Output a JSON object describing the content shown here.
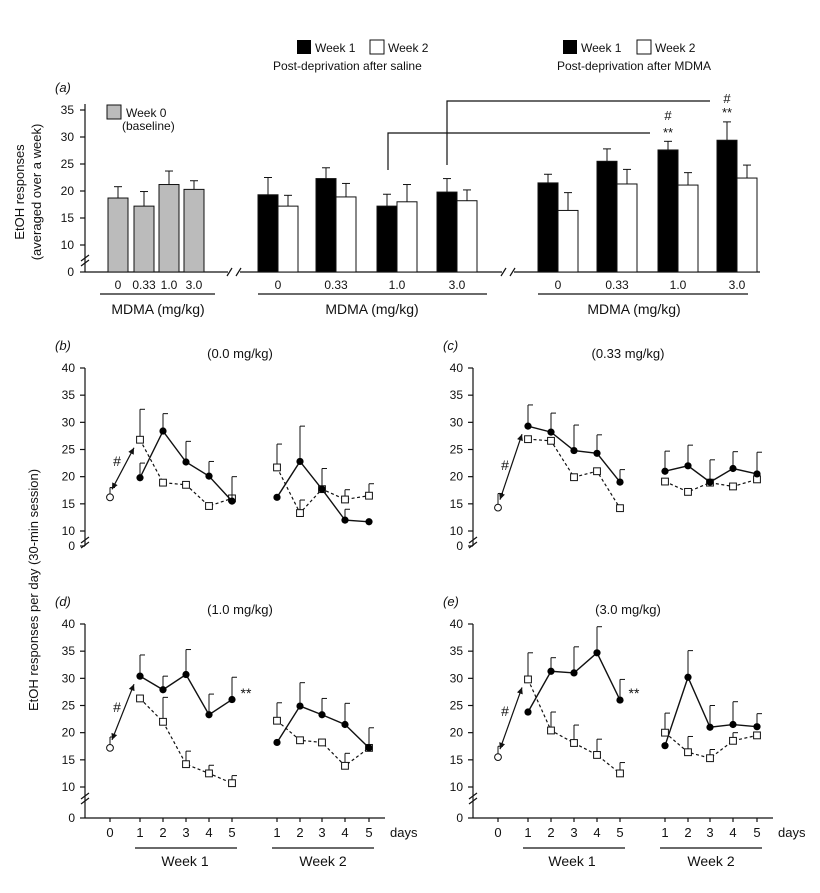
{
  "legend": {
    "w1": "Week 1",
    "w2": "Week 2",
    "w0": "Week 0",
    "w0b": "(baseline)",
    "saline": "Post-deprivation after saline",
    "mdma": "Post-deprivation after MDMA"
  },
  "labels": {
    "panel_a": "(a)",
    "panel_b": "(b)",
    "panel_c": "(c)",
    "panel_d": "(d)",
    "panel_e": "(e)",
    "ya1": "EtOH responses",
    "ya2": "(averaged over a week)",
    "ybe": "EtOH responses per day (30-min session)",
    "xlab": "MDMA (mg/kg)",
    "days": "days",
    "week1": "Week 1",
    "week2": "Week 2",
    "hash": "#",
    "stars": "**"
  },
  "chart_data": [
    {
      "type": "bar",
      "panel": "a",
      "ylim": [
        0,
        35
      ],
      "yticks": [
        0,
        10,
        15,
        20,
        25,
        30,
        35
      ],
      "groups": [
        {
          "name": "Week 0 (baseline)",
          "categories": [
            "0",
            "0.33",
            "1.0",
            "3.0"
          ],
          "series": [
            {
              "name": "Week 0",
              "values": [
                18.7,
                17.2,
                21.2,
                20.3
              ],
              "err": [
                2.1,
                2.7,
                2.5,
                1.6
              ]
            }
          ]
        },
        {
          "name": "Post-deprivation after saline",
          "categories": [
            "0",
            "0.33",
            "1.0",
            "3.0"
          ],
          "series": [
            {
              "name": "Week 1",
              "values": [
                19.3,
                22.3,
                17.2,
                19.8
              ],
              "err": [
                3.2,
                2.0,
                2.2,
                2.5
              ]
            },
            {
              "name": "Week 2",
              "values": [
                17.2,
                18.9,
                18.0,
                18.2
              ],
              "err": [
                2.0,
                2.5,
                3.2,
                2.0
              ]
            }
          ]
        },
        {
          "name": "Post-deprivation after MDMA",
          "categories": [
            "0",
            "0.33",
            "1.0",
            "3.0"
          ],
          "series": [
            {
              "name": "Week 1",
              "values": [
                21.5,
                25.5,
                27.6,
                29.4
              ],
              "err": [
                1.6,
                2.3,
                1.6,
                3.4
              ]
            },
            {
              "name": "Week 2",
              "values": [
                16.4,
                21.3,
                21.1,
                22.4
              ],
              "err": [
                3.3,
                2.7,
                2.3,
                2.4
              ]
            }
          ]
        }
      ],
      "annotations": [
        "#",
        "**"
      ]
    },
    {
      "type": "line",
      "panel": "b",
      "title": "(0.0 mg/kg)",
      "ylim": [
        0,
        40
      ],
      "baseline": {
        "day": 0,
        "value": 16.2,
        "err": 1.8
      },
      "week1": {
        "w1": [
          19.8,
          28.4,
          22.7,
          20.1,
          15.5
        ],
        "w1_err": [
          2.7,
          3.2,
          3.8,
          2.7,
          4.5
        ],
        "w2": [
          26.8,
          18.9,
          18.5,
          14.6,
          16.0
        ],
        "w2_err": [
          5.6,
          0,
          0,
          0,
          0
        ]
      },
      "week2": {
        "w1": [
          16.2,
          22.8,
          17.7,
          12.0,
          11.7
        ],
        "w1_err": [
          0,
          6.5,
          3.8,
          2.0,
          0
        ],
        "w2": [
          21.7,
          13.3,
          17.7,
          15.8,
          16.5
        ],
        "w2_err": [
          4.3,
          2.4,
          0,
          1.8,
          2.2
        ]
      },
      "annotations": [
        "#"
      ]
    },
    {
      "type": "line",
      "panel": "c",
      "title": "(0.33 mg/kg)",
      "ylim": [
        0,
        40
      ],
      "baseline": {
        "day": 0,
        "value": 14.3,
        "err": 2.6
      },
      "week1": {
        "w1": [
          29.3,
          28.2,
          24.8,
          24.3,
          19.0
        ],
        "w1_err": [
          3.9,
          3.5,
          4.7,
          3.4,
          2.3
        ],
        "w2": [
          26.9,
          26.6,
          19.9,
          21.0,
          14.2
        ],
        "w2_err": [
          0,
          0,
          0,
          0,
          0
        ]
      },
      "week2": {
        "w1": [
          21.0,
          22.0,
          19.0,
          21.5,
          20.5
        ],
        "w1_err": [
          3.7,
          3.8,
          4.1,
          3.1,
          4.0
        ],
        "w2": [
          19.1,
          17.2,
          18.9,
          18.2,
          19.5
        ],
        "w2_err": [
          0,
          0,
          0,
          0,
          0
        ]
      },
      "annotations": [
        "#"
      ]
    },
    {
      "type": "line",
      "panel": "d",
      "title": "(1.0 mg/kg)",
      "ylim": [
        0,
        40
      ],
      "baseline": {
        "day": 0,
        "value": 17.2,
        "err": 2.0
      },
      "week1": {
        "w1": [
          30.4,
          27.9,
          30.7,
          23.3,
          26.1
        ],
        "w1_err": [
          3.9,
          2.5,
          4.6,
          3.8,
          4.1
        ],
        "w2": [
          26.3,
          22.0,
          14.2,
          12.5,
          10.7
        ],
        "w2_err": [
          0,
          4.5,
          2.4,
          1.5,
          1.4
        ]
      },
      "week2": {
        "w1": [
          18.2,
          24.9,
          23.3,
          21.5,
          17.2
        ],
        "w1_err": [
          0,
          4.3,
          3.0,
          3.9,
          3.7
        ],
        "w2": [
          22.2,
          18.6,
          18.2,
          13.9,
          17.2
        ],
        "w2_err": [
          3.3,
          0,
          0,
          2.3,
          0
        ]
      },
      "annotations": [
        "#",
        "**"
      ]
    },
    {
      "type": "line",
      "panel": "e",
      "title": "(3.0 mg/kg)",
      "ylim": [
        0,
        40
      ],
      "baseline": {
        "day": 0,
        "value": 15.5,
        "err": 2.0
      },
      "week1": {
        "w1": [
          23.8,
          31.3,
          31.0,
          34.7,
          26.0
        ],
        "w1_err": [
          0,
          2.5,
          4.8,
          4.8,
          3.8
        ],
        "w2": [
          29.8,
          20.4,
          18.1,
          15.9,
          12.5
        ],
        "w2_err": [
          4.9,
          3.4,
          3.3,
          2.9,
          2.0
        ]
      },
      "week2": {
        "w1": [
          17.6,
          30.2,
          21.0,
          21.5,
          21.1
        ],
        "w1_err": [
          0,
          4.9,
          4.0,
          4.2,
          2.4
        ],
        "w2": [
          20.0,
          16.4,
          15.3,
          18.5,
          19.5
        ],
        "w2_err": [
          3.6,
          2.9,
          1.6,
          1.5,
          0
        ]
      },
      "annotations": [
        "#",
        "**"
      ]
    }
  ]
}
